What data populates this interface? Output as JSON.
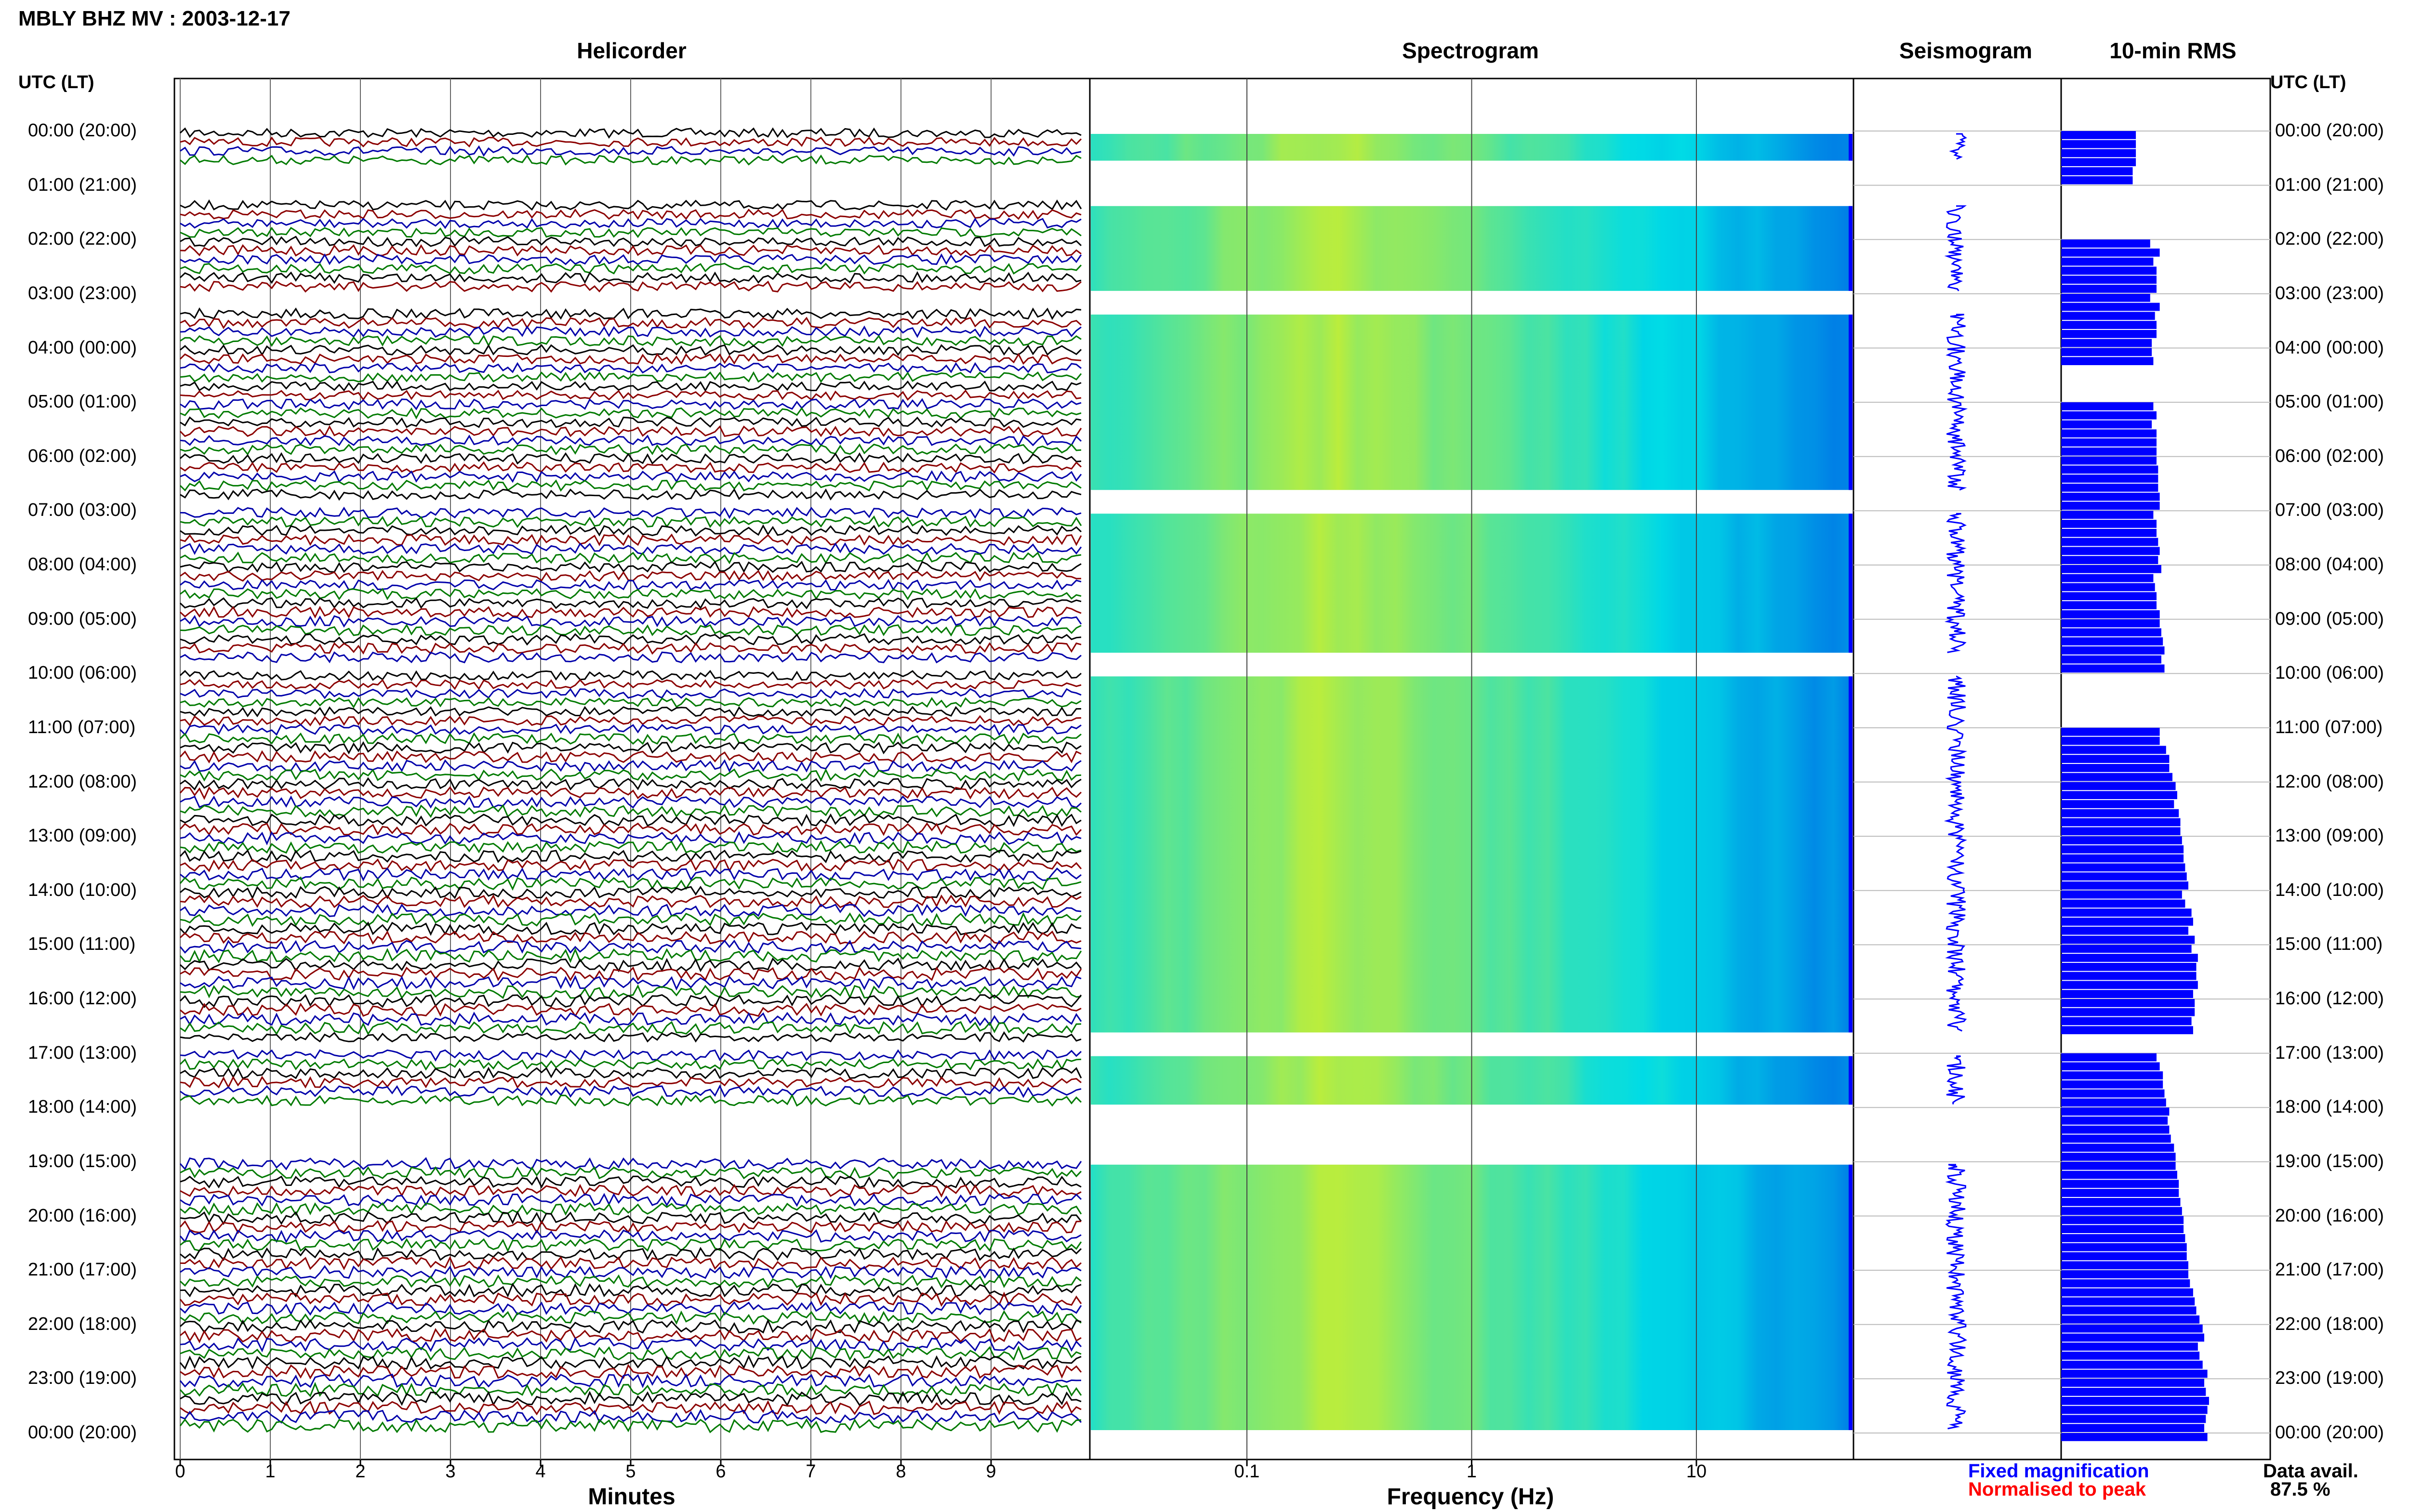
{
  "header": {
    "title": "MBLY BHZ MV : 2003-12-17",
    "utc_left": "UTC (LT)",
    "utc_right": "UTC (LT)"
  },
  "panels": {
    "helicorder": "Helicorder",
    "spectrogram": "Spectrogram",
    "seismogram": "Seismogram",
    "rms": "10-min RMS"
  },
  "axes": {
    "minutes_label": "Minutes",
    "frequency_label": "Frequency (Hz)",
    "minute_ticks": [
      "0",
      "1",
      "2",
      "3",
      "4",
      "5",
      "6",
      "7",
      "8",
      "9"
    ],
    "frequency_ticks": [
      "0.1",
      "1",
      "10"
    ]
  },
  "legend": {
    "fixed": "Fixed magnification",
    "normalised": "Normalised to peak",
    "fixed_color": "#0000ff",
    "normalised_color": "#ff0000"
  },
  "availability": {
    "label": "Data avail.",
    "value": "87.5 %"
  },
  "colors": {
    "trace_cycle": [
      "#000000",
      "#8b0000",
      "#0000aa",
      "#007a00"
    ],
    "rms_bar": "#0000ff"
  },
  "chart_data": {
    "type": "heatmap",
    "title": "MBLY BHZ MV : 2003-12-17",
    "hour_labels": [
      "00:00 (20:00)",
      "01:00 (21:00)",
      "02:00 (22:00)",
      "03:00 (23:00)",
      "04:00 (00:00)",
      "05:00 (01:00)",
      "06:00 (02:00)",
      "07:00 (03:00)",
      "08:00 (04:00)",
      "09:00 (05:00)",
      "10:00 (06:00)",
      "11:00 (07:00)",
      "12:00 (08:00)",
      "13:00 (09:00)",
      "14:00 (10:00)",
      "15:00 (11:00)",
      "16:00 (12:00)",
      "17:00 (13:00)",
      "18:00 (14:00)",
      "19:00 (15:00)",
      "20:00 (16:00)",
      "21:00 (17:00)",
      "22:00 (18:00)",
      "23:00 (19:00)",
      "00:00 (20:00)"
    ],
    "xlim_minutes": [
      0,
      10
    ],
    "freq_range_hz": [
      0.02,
      50
    ],
    "freq_scale": "log",
    "data_segments_hours": [
      [
        0.0,
        0.6
      ],
      [
        1.33,
        3.0
      ],
      [
        3.33,
        6.67
      ],
      [
        7.0,
        9.67
      ],
      [
        10.0,
        16.67
      ],
      [
        17.0,
        18.0
      ],
      [
        19.0,
        24.0
      ]
    ],
    "rms_values": [
      0.47,
      0.47,
      0.47,
      0.47,
      0.45,
      0.45,
      null,
      null,
      null,
      null,
      null,
      null,
      0.56,
      0.62,
      0.58,
      0.6,
      0.6,
      0.6,
      0.56,
      0.62,
      0.59,
      0.6,
      0.6,
      0.57,
      0.57,
      0.58,
      null,
      null,
      null,
      null,
      0.58,
      0.6,
      0.57,
      0.6,
      0.6,
      0.6,
      0.6,
      0.61,
      0.61,
      0.61,
      0.62,
      0.62,
      0.58,
      0.6,
      0.6,
      0.61,
      0.62,
      0.61,
      0.63,
      0.58,
      0.59,
      0.6,
      0.6,
      0.62,
      0.62,
      0.63,
      0.64,
      0.65,
      0.63,
      0.65,
      null,
      null,
      null,
      null,
      null,
      null,
      0.62,
      0.62,
      0.66,
      0.68,
      0.68,
      0.7,
      0.72,
      0.73,
      0.71,
      0.74,
      0.75,
      0.75,
      0.76,
      0.77,
      0.77,
      0.78,
      0.79,
      0.8,
      0.76,
      0.78,
      0.82,
      0.83,
      0.8,
      0.84,
      0.82,
      0.86,
      0.85,
      0.85,
      0.86,
      0.83,
      0.84,
      0.84,
      0.82,
      0.83,
      null,
      null,
      0.6,
      0.62,
      0.64,
      0.64,
      0.65,
      0.66,
      0.68,
      0.67,
      0.68,
      0.69,
      0.71,
      0.72,
      0.72,
      0.73,
      0.74,
      0.74,
      0.75,
      0.76,
      0.77,
      0.77,
      0.78,
      0.79,
      0.79,
      0.8,
      0.8,
      0.81,
      0.83,
      0.84,
      0.85,
      0.87,
      0.89,
      0.9,
      0.86,
      0.87,
      0.89,
      0.92,
      0.9,
      0.91,
      0.93,
      0.92,
      0.91,
      0.9,
      0.92
    ]
  }
}
